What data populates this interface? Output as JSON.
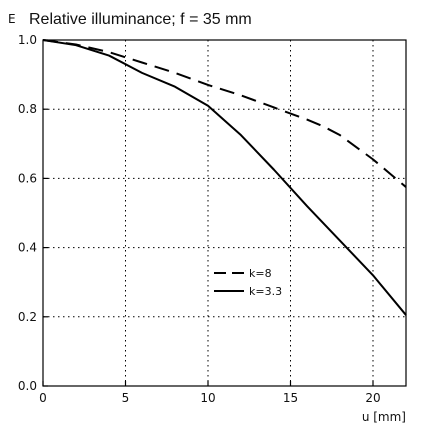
{
  "chart_data": {
    "type": "line",
    "title": "Relative illuminance; f = 35 mm",
    "ylabel": "E",
    "xlabel": "u [mm]",
    "xlim": [
      0,
      22
    ],
    "ylim": [
      0.0,
      1.0
    ],
    "x_ticks": [
      0,
      5,
      10,
      15,
      20
    ],
    "x_tick_labels": [
      "0",
      "5",
      "10",
      "15",
      "20"
    ],
    "y_ticks": [
      0.0,
      0.2,
      0.4,
      0.6,
      0.8,
      1.0
    ],
    "y_tick_labels": [
      "0.0",
      "0.2",
      "0.4",
      "0.6",
      "0.8",
      "1.0"
    ],
    "grid": true,
    "legend_position": "lower-middle-right",
    "series": [
      {
        "name": "k=8",
        "style": "dashed",
        "color": "#000000",
        "x": [
          0,
          2,
          4,
          6,
          8,
          10,
          12,
          14,
          16,
          17,
          18,
          19,
          20,
          21,
          22
        ],
        "y": [
          1.0,
          0.987,
          0.965,
          0.935,
          0.905,
          0.87,
          0.84,
          0.805,
          0.77,
          0.75,
          0.725,
          0.69,
          0.655,
          0.615,
          0.575
        ]
      },
      {
        "name": "k=3.3",
        "style": "solid",
        "color": "#000000",
        "x": [
          0,
          2,
          4,
          6,
          8,
          10,
          12,
          14,
          16,
          18,
          20,
          22
        ],
        "y": [
          1.0,
          0.985,
          0.955,
          0.905,
          0.865,
          0.81,
          0.725,
          0.625,
          0.52,
          0.42,
          0.32,
          0.205
        ]
      }
    ]
  }
}
